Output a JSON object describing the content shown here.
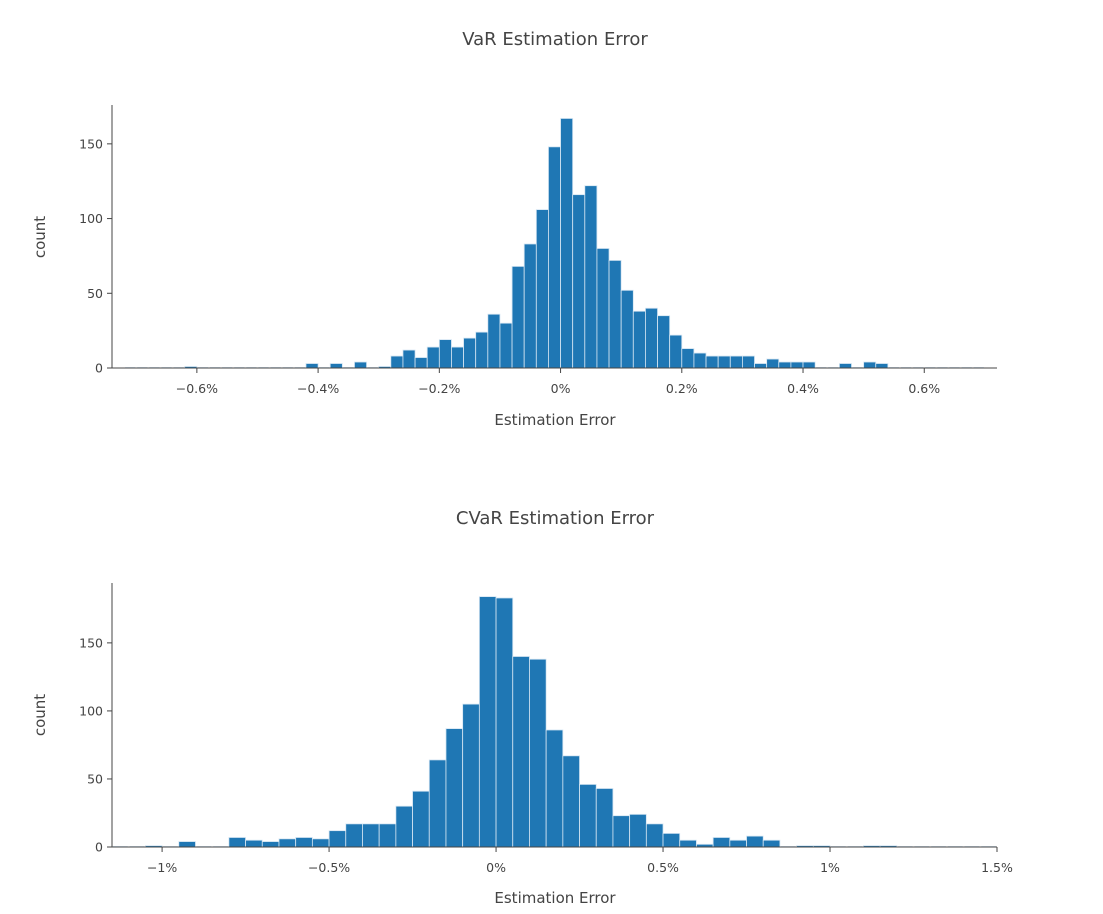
{
  "colors": {
    "bar": "#1f77b4",
    "bar_outline": "#d6e6f3",
    "axis": "#444444",
    "text": "#444444"
  },
  "chart_data": [
    {
      "type": "bar",
      "title": "VaR Estimation Error",
      "xlabel": "Estimation Error",
      "ylabel": "count",
      "xlim": [
        -0.74,
        0.72
      ],
      "ylim": [
        0,
        176
      ],
      "x_unit": "%",
      "bin_width": 0.02,
      "bin_start": -0.72,
      "counts": [
        0,
        0,
        0,
        0,
        0,
        1,
        0,
        0,
        0,
        0,
        0,
        0,
        0,
        0,
        0,
        3,
        0,
        3,
        0,
        4,
        0,
        1,
        8,
        12,
        7,
        14,
        19,
        14,
        20,
        24,
        36,
        30,
        68,
        83,
        106,
        148,
        167,
        116,
        122,
        80,
        72,
        52,
        38,
        40,
        35,
        22,
        13,
        10,
        8,
        8,
        8,
        8,
        3,
        6,
        4,
        4,
        4,
        0,
        0,
        3,
        0,
        4,
        3,
        0,
        0,
        0,
        0,
        0,
        0,
        0,
        0
      ],
      "xticks": [
        -0.6,
        -0.4,
        -0.2,
        0,
        0.2,
        0.4,
        0.6
      ],
      "xtick_labels": [
        "−0.6%",
        "−0.4%",
        "−0.2%",
        "0%",
        "0.2%",
        "0.4%",
        "0.6%"
      ],
      "yticks": [
        0,
        50,
        100,
        150
      ],
      "ytick_labels": [
        "0",
        "50",
        "100",
        "150"
      ],
      "grid": false
    },
    {
      "type": "bar",
      "title": "CVaR Estimation Error",
      "xlabel": "Estimation Error",
      "ylabel": "count",
      "xlim": [
        -1.15,
        1.5
      ],
      "ylim": [
        0,
        194
      ],
      "x_unit": "%",
      "bin_width": 0.05,
      "bin_start": -1.15,
      "counts": [
        0,
        0,
        1,
        0,
        4,
        0,
        0,
        7,
        5,
        4,
        6,
        7,
        6,
        12,
        17,
        17,
        17,
        30,
        41,
        64,
        87,
        105,
        184,
        183,
        140,
        138,
        86,
        67,
        46,
        43,
        23,
        24,
        17,
        10,
        5,
        2,
        7,
        5,
        8,
        5,
        0,
        1,
        1,
        0,
        0,
        1,
        1,
        0,
        0,
        0,
        0,
        0,
        0
      ],
      "xticks": [
        -1,
        -0.5,
        0,
        0.5,
        1,
        1.5
      ],
      "xtick_labels": [
        "−1%",
        "−0.5%",
        "0%",
        "0.5%",
        "1%",
        "1.5%"
      ],
      "yticks": [
        0,
        50,
        100,
        150
      ],
      "ytick_labels": [
        "0",
        "50",
        "100",
        "150"
      ],
      "grid": false
    }
  ]
}
